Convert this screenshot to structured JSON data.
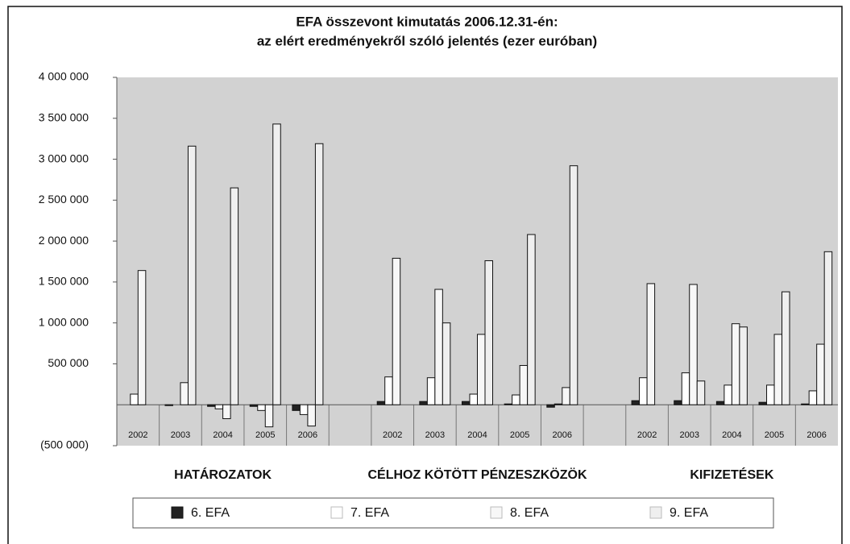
{
  "chart_data": {
    "type": "bar",
    "title": [
      "EFA összevont kimutatás 2006.12.31-én:",
      "az elért eredményekről szóló jelentés (ezer euróban)"
    ],
    "groups": [
      "HATÁROZATOK",
      "CÉLHOZ KÖTÖTT PÉNZESZKÖZÖK",
      "KIFIZETÉSEK"
    ],
    "categories": [
      "2002",
      "2003",
      "2004",
      "2005",
      "2006"
    ],
    "series": [
      {
        "name": "6. EFA",
        "color": "#222222",
        "values": [
          [
            0,
            -10000,
            -20000,
            -20000,
            -70000
          ],
          [
            40000,
            40000,
            40000,
            10000,
            -30000
          ],
          [
            50000,
            50000,
            40000,
            30000,
            10000
          ]
        ]
      },
      {
        "name": "7. EFA",
        "color": "#ffffff",
        "values": [
          [
            130000,
            0,
            -50000,
            -70000,
            -120000
          ],
          [
            340000,
            330000,
            130000,
            120000,
            10000
          ],
          [
            330000,
            390000,
            240000,
            240000,
            170000
          ]
        ]
      },
      {
        "name": "8. EFA",
        "color": "#f7f7f7",
        "values": [
          [
            1640000,
            270000,
            -170000,
            -270000,
            -260000
          ],
          [
            1790000,
            1410000,
            860000,
            480000,
            210000
          ],
          [
            1480000,
            1470000,
            990000,
            860000,
            740000
          ]
        ]
      },
      {
        "name": "9. EFA",
        "color": "#efefef",
        "values": [
          [
            0,
            3160000,
            2650000,
            3430000,
            3190000
          ],
          [
            0,
            1000000,
            1760000,
            2080000,
            2920000
          ],
          [
            0,
            290000,
            950000,
            1380000,
            1870000
          ]
        ]
      }
    ],
    "ylim": [
      -500000,
      4000000
    ],
    "yticks": [
      {
        "value": 4000000,
        "label": "4 000 000"
      },
      {
        "value": 3500000,
        "label": "3 500 000"
      },
      {
        "value": 3000000,
        "label": "3 000 000"
      },
      {
        "value": 2500000,
        "label": "2 500 000"
      },
      {
        "value": 2000000,
        "label": "2 000 000"
      },
      {
        "value": 1500000,
        "label": "1 500 000"
      },
      {
        "value": 1000000,
        "label": "1 000 000"
      },
      {
        "value": 500000,
        "label": "500 000"
      },
      {
        "value": -500000,
        "label": "(500 000)"
      }
    ],
    "plot_color": "#d2d2d2"
  }
}
